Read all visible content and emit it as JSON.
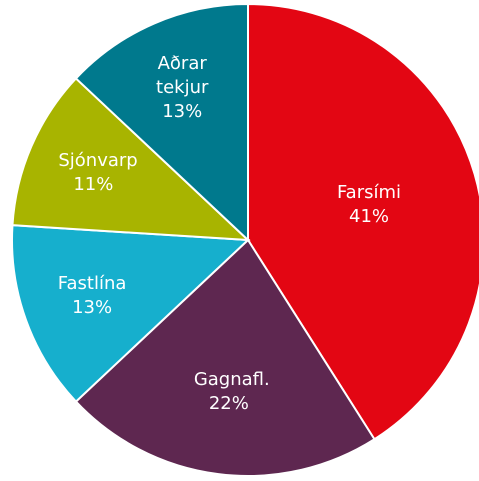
{
  "chart_data": {
    "type": "pie",
    "categories": [
      "Farsími",
      "Gagnafl.",
      "Fastlína",
      "Sjónvarp",
      "Aðrar tekjur"
    ],
    "values": [
      41,
      22,
      13,
      11,
      13
    ],
    "value_labels": [
      "41%",
      "22%",
      "13%",
      "11%",
      "13%"
    ],
    "colors": [
      "#e30613",
      "#5e2750",
      "#16afcd",
      "#a8b400",
      "#00798d"
    ]
  }
}
